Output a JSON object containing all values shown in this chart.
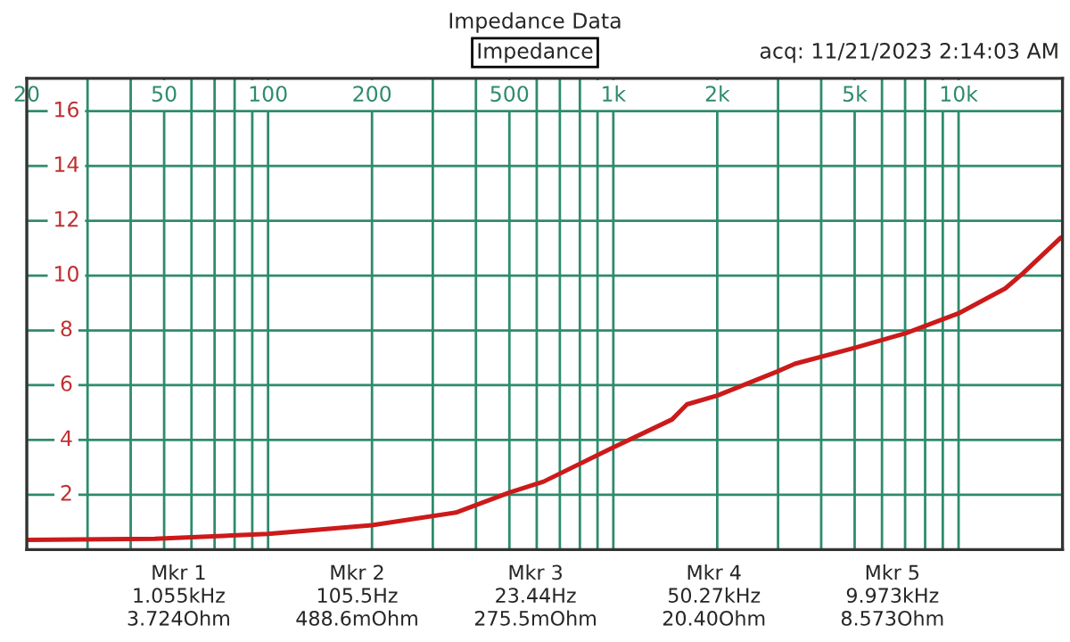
{
  "chart_data": {
    "type": "line",
    "title": "Impedance Data",
    "subtitle": "Impedance",
    "annotations": [
      "acq: 11/21/2023 2:14:03 AM",
      "Mkr 1\n1.055kHz\n3.724Ohm",
      "Mkr 2\n105.5Hz\n488.6mOhm",
      "Mkr 3\n23.44Hz\n275.5mOhm",
      "Mkr 4\n50.27kHz\n20.40Ohm",
      "Mkr 5\n9.973kHz\n8.573Ohm"
    ],
    "log": "x",
    "grid": true,
    "legend": false,
    "marker": "none",
    "line_style": "solid",
    "xlim": [
      20,
      20000
    ],
    "ylim": [
      0,
      17.2
    ],
    "xticks": [
      20,
      {
        "value": 30,
        "label": null
      },
      {
        "value": 40,
        "label": null
      },
      50,
      {
        "value": 60,
        "label": null
      },
      {
        "value": 70,
        "label": null
      },
      {
        "value": 80,
        "label": null
      },
      {
        "value": 90,
        "label": null
      },
      100,
      200,
      {
        "value": 300,
        "label": null
      },
      {
        "value": 400,
        "label": null
      },
      500,
      {
        "value": 600,
        "label": null
      },
      {
        "value": 700,
        "label": null
      },
      {
        "value": 800,
        "label": null
      },
      {
        "value": 900,
        "label": null
      },
      {
        "value": 1000,
        "label": "1k"
      },
      {
        "value": 2000,
        "label": "2k"
      },
      {
        "value": 3000,
        "label": null
      },
      {
        "value": 4000,
        "label": null
      },
      {
        "value": 5000,
        "label": "5k"
      },
      {
        "value": 6000,
        "label": null
      },
      {
        "value": 7000,
        "label": null
      },
      {
        "value": 8000,
        "label": null
      },
      {
        "value": 9000,
        "label": null
      },
      {
        "value": 10000,
        "label": "10k"
      }
    ],
    "yticks": [
      2,
      4,
      6,
      8,
      10,
      12,
      14,
      16
    ],
    "series": [
      {
        "color": "#cc1a1a",
        "x": [
          20,
          47,
          100,
          200,
          350,
          500,
          628,
          1000,
          1480,
          1634,
          2000,
          2986,
          3356,
          5000,
          7040,
          10000,
          13650,
          15350,
          19760
        ],
        "values": [
          0.35,
          0.39,
          0.57,
          0.89,
          1.35,
          2.08,
          2.48,
          3.73,
          4.75,
          5.3,
          5.62,
          6.5,
          6.78,
          7.36,
          7.9,
          8.62,
          9.53,
          10.08,
          11.38
        ]
      }
    ]
  }
}
